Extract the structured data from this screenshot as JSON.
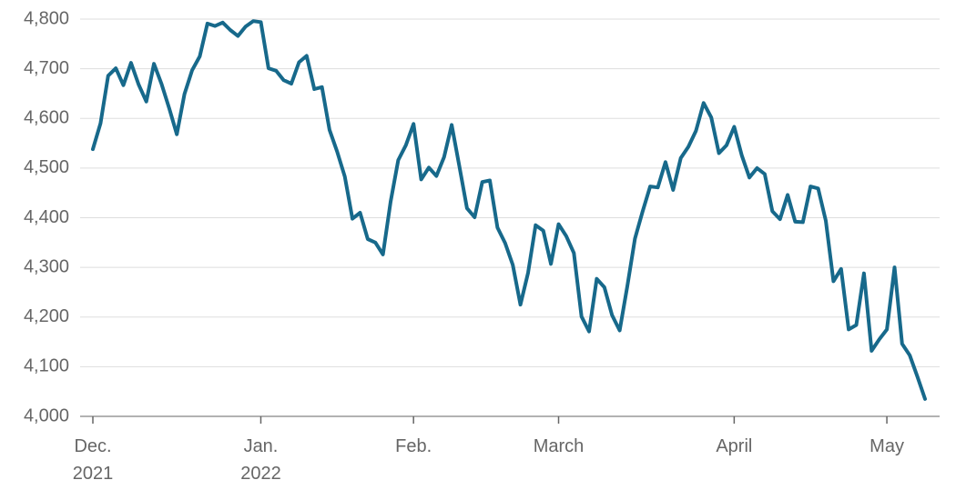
{
  "chart_data": {
    "type": "line",
    "categories": [
      "Dec. 2021",
      null,
      null,
      null,
      null,
      null,
      null,
      null,
      null,
      null,
      null,
      null,
      null,
      null,
      null,
      null,
      null,
      null,
      null,
      null,
      null,
      null,
      "Jan. 2022",
      null,
      null,
      null,
      null,
      null,
      null,
      null,
      null,
      null,
      null,
      null,
      null,
      null,
      null,
      null,
      null,
      null,
      null,
      null,
      "Feb.",
      null,
      null,
      null,
      null,
      null,
      null,
      null,
      null,
      null,
      null,
      null,
      null,
      null,
      null,
      null,
      null,
      null,
      null,
      "March",
      null,
      null,
      null,
      null,
      null,
      null,
      null,
      null,
      null,
      null,
      null,
      null,
      null,
      null,
      null,
      null,
      null,
      null,
      null,
      null,
      null,
      null,
      "April",
      null,
      null,
      null,
      null,
      null,
      null,
      null,
      null,
      null,
      null,
      null,
      null,
      null,
      null,
      null,
      null,
      null,
      null,
      null,
      "May",
      null,
      null,
      null,
      null,
      null
    ],
    "series": [
      {
        "color": "#17698b",
        "values": [
          4538,
          4590,
          4686,
          4701,
          4667,
          4712,
          4668,
          4634,
          4710,
          4669,
          4620,
          4568,
          4649,
          4697,
          4725,
          4791,
          4786,
          4793,
          4778,
          4766,
          4785,
          4796,
          4794,
          4701,
          4696,
          4677,
          4670,
          4713,
          4726,
          4659,
          4663,
          4577,
          4533,
          4483,
          4398,
          4410,
          4357,
          4350,
          4326,
          4432,
          4516,
          4546,
          4589,
          4477,
          4501,
          4484,
          4522,
          4587,
          4504,
          4419,
          4401,
          4472,
          4475,
          4380,
          4349,
          4305,
          4225,
          4289,
          4385,
          4374,
          4307,
          4387,
          4363,
          4329,
          4201,
          4171,
          4277,
          4260,
          4204,
          4173,
          4262,
          4358,
          4412,
          4463,
          4461,
          4512,
          4456,
          4520,
          4543,
          4575,
          4631,
          4602,
          4530,
          4546,
          4583,
          4525,
          4481,
          4500,
          4488,
          4413,
          4397,
          4446,
          4392,
          4391,
          4463,
          4459,
          4394,
          4272,
          4297,
          4175,
          4184,
          4288,
          4132,
          4155,
          4175,
          4300,
          4146,
          4123,
          4080,
          4035
        ]
      }
    ],
    "ylim": [
      4000,
      4800
    ],
    "yticks": [
      {
        "value": 4000,
        "label": "4,000"
      },
      {
        "value": 4100,
        "label": "4,100"
      },
      {
        "value": 4200,
        "label": "4,200"
      },
      {
        "value": 4300,
        "label": "4,300"
      },
      {
        "value": 4400,
        "label": "4,400"
      },
      {
        "value": 4500,
        "label": "4,500"
      },
      {
        "value": 4600,
        "label": "4,600"
      },
      {
        "value": 4700,
        "label": "4,700"
      },
      {
        "value": 4800,
        "label": "4,800"
      }
    ],
    "grid": true
  }
}
